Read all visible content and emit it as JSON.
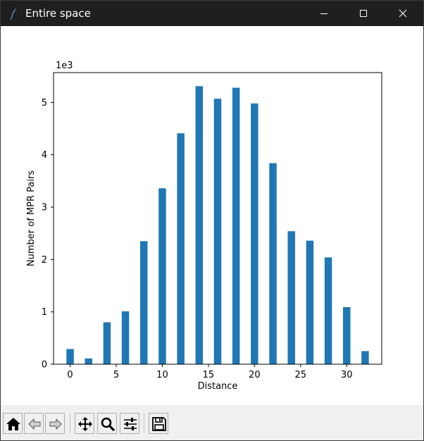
{
  "window": {
    "title": "Entire space",
    "app_icon": "feather-icon"
  },
  "toolbar": {
    "buttons": [
      {
        "name": "home-button",
        "icon": "home-icon"
      },
      {
        "name": "back-button",
        "icon": "arrow-left-icon"
      },
      {
        "name": "forward-button",
        "icon": "arrow-right-icon"
      },
      {
        "name": "pan-button",
        "icon": "move-icon"
      },
      {
        "name": "zoom-button",
        "icon": "magnifier-icon"
      },
      {
        "name": "configure-subplots-button",
        "icon": "sliders-icon"
      },
      {
        "name": "save-button",
        "icon": "floppy-disk-icon"
      }
    ]
  },
  "chart_data": {
    "type": "bar",
    "x": [
      0,
      2,
      4,
      6,
      8,
      10,
      12,
      14,
      16,
      18,
      20,
      22,
      24,
      26,
      28,
      30,
      32
    ],
    "values": [
      290,
      110,
      800,
      1010,
      2350,
      3360,
      4410,
      5310,
      5070,
      5280,
      4980,
      3840,
      2540,
      2360,
      2040,
      1090,
      250
    ],
    "bar_color": "#1f77b4",
    "xlabel": "Distance",
    "ylabel": "Number of MPR Pairs",
    "offset_text": "1e3",
    "xlim": [
      -1.8,
      33.8
    ],
    "ylim": [
      0,
      5570
    ],
    "xticks": [
      0,
      5,
      10,
      15,
      20,
      25,
      30
    ],
    "xtick_labels": [
      "0",
      "5",
      "10",
      "15",
      "20",
      "25",
      "30"
    ],
    "yticks": [
      0,
      1000,
      2000,
      3000,
      4000,
      5000
    ],
    "ytick_labels": [
      "0",
      "1",
      "2",
      "3",
      "4",
      "5"
    ],
    "grid": false
  }
}
